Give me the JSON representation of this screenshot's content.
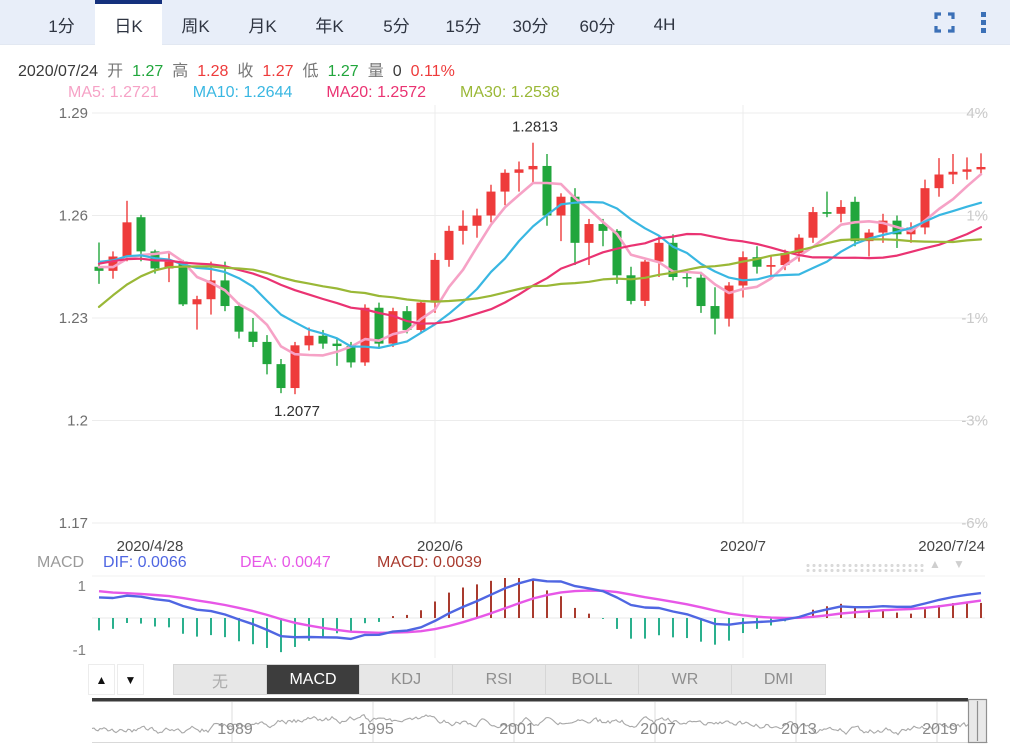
{
  "colors": {
    "accent_blue": "#3b70b7",
    "tab_active_border": "#15317d",
    "tabbar_bg": "#e8eef9",
    "up_red": "#ee3b3b",
    "down_green": "#21a63c",
    "dif_blue": "#4f66e2",
    "dea_magenta": "#e757e7",
    "hist_up": "#a93a2e",
    "hist_down": "#2ab08d",
    "grid": "#ececec",
    "text_dark": "#3a3a3a",
    "text_gray": "#777777",
    "text_light": "#c9c9c9"
  },
  "period_tabs": {
    "items": [
      "1分",
      "日K",
      "周K",
      "月K",
      "年K",
      "5分",
      "15分",
      "30分",
      "60分",
      "4H"
    ],
    "active_index": 1
  },
  "window_controls": {
    "fullscreen": "fullscreen-icon",
    "more": "kebab-menu-icon"
  },
  "quote_bar": {
    "segments": [
      {
        "text": "2020/07/24",
        "color": "#3a3a3a"
      },
      {
        "text": "开",
        "color": "#777777"
      },
      {
        "text": "1.27",
        "color": "#21a63c"
      },
      {
        "text": "高",
        "color": "#777777"
      },
      {
        "text": "1.28",
        "color": "#ee3b3b"
      },
      {
        "text": "收",
        "color": "#777777"
      },
      {
        "text": "1.27",
        "color": "#ee3b3b"
      },
      {
        "text": "低",
        "color": "#777777"
      },
      {
        "text": "1.27",
        "color": "#21a63c"
      },
      {
        "text": "量",
        "color": "#777777"
      },
      {
        "text": "0",
        "color": "#3a3a3a"
      },
      {
        "text": "0.11%",
        "color": "#ee3b3b"
      }
    ]
  },
  "ma_bar": {
    "items": [
      {
        "label": "MA5:",
        "value": "1.2721",
        "color": "#f6a2c6"
      },
      {
        "label": "MA10:",
        "value": "1.2644",
        "color": "#39b7e2"
      },
      {
        "label": "MA20:",
        "value": "1.2572",
        "color": "#ea3372"
      },
      {
        "label": "MA30:",
        "value": "1.2538",
        "color": "#9ab837"
      }
    ]
  },
  "macd_bar": {
    "title": "MACD",
    "items": [
      {
        "label": "DIF:",
        "value": "0.0066",
        "color": "#4f66e2"
      },
      {
        "label": "DEA:",
        "value": "0.0047",
        "color": "#e757e7"
      },
      {
        "label": "MACD:",
        "value": "0.0039",
        "color": "#a93a2e"
      }
    ],
    "up_arrow": "▲",
    "down_arrow": "▼"
  },
  "indicator_tabs": {
    "up_arrow": "▲",
    "down_arrow": "▼",
    "items": [
      "无",
      "MACD",
      "KDJ",
      "RSI",
      "BOLL",
      "WR",
      "DMI"
    ],
    "active_index": 1
  },
  "chart_data": [
    {
      "type": "candlestick",
      "title": "GBP daily K-line",
      "y_ticks": [
        {
          "value": 1.29,
          "left": "1.29",
          "right": "4%"
        },
        {
          "value": 1.26,
          "left": "1.26",
          "right": "1%"
        },
        {
          "value": 1.23,
          "left": "1.23",
          "right": "-1%"
        },
        {
          "value": 1.2,
          "left": "1.2",
          "right": "-3%"
        },
        {
          "value": 1.17,
          "left": "1.17",
          "right": "-6%"
        }
      ],
      "ylim": [
        1.165,
        1.2925
      ],
      "x_axis": [
        {
          "label": "2020/4/28",
          "index": 0,
          "x": 150,
          "anchor": "middle",
          "gridline": false
        },
        {
          "label": "2020/6",
          "index": 24,
          "x": 440,
          "anchor": "middle",
          "gridline": true
        },
        {
          "label": "2020/7",
          "index": 46,
          "x": 743,
          "anchor": "middle",
          "gridline": true
        },
        {
          "label": "2020/7/24",
          "index": 63,
          "x": 985,
          "anchor": "end",
          "gridline": false
        }
      ],
      "annotations": [
        {
          "text": "1.2813",
          "index": 31,
          "placement": "above"
        },
        {
          "text": "1.2077",
          "index": 14,
          "placement": "below"
        }
      ],
      "ma_periods": [
        5,
        10,
        20,
        30
      ],
      "prehistory_closes": [
        1.216,
        1.1466,
        1.1628,
        1.1773,
        1.1925,
        1.2175,
        1.2305,
        1.233,
        1.241,
        1.2464,
        1.2322,
        1.2335,
        1.2455,
        1.2473,
        1.2541,
        1.2478,
        1.2458,
        1.2414,
        1.2455,
        1.2443,
        1.248,
        1.244,
        1.2455,
        1.247,
        1.253,
        1.2505,
        1.248,
        1.246,
        1.244,
        1.2427
      ],
      "candles": [
        {
          "d": "2020/04/28",
          "o": 1.245,
          "h": 1.2521,
          "l": 1.24,
          "c": 1.2438
        },
        {
          "d": "2020/04/29",
          "o": 1.2438,
          "h": 1.2495,
          "l": 1.2415,
          "c": 1.248
        },
        {
          "d": "2020/04/30",
          "o": 1.248,
          "h": 1.2643,
          "l": 1.2466,
          "c": 1.258
        },
        {
          "d": "2020/05/01",
          "o": 1.2595,
          "h": 1.2602,
          "l": 1.2466,
          "c": 1.2495
        },
        {
          "d": "2020/05/04",
          "o": 1.2495,
          "h": 1.25,
          "l": 1.243,
          "c": 1.2445
        },
        {
          "d": "2020/05/05",
          "o": 1.2445,
          "h": 1.2495,
          "l": 1.2405,
          "c": 1.2465
        },
        {
          "d": "2020/05/06",
          "o": 1.2465,
          "h": 1.247,
          "l": 1.2335,
          "c": 1.234
        },
        {
          "d": "2020/05/07",
          "o": 1.234,
          "h": 1.2365,
          "l": 1.2266,
          "c": 1.2355
        },
        {
          "d": "2020/05/08",
          "o": 1.2355,
          "h": 1.2465,
          "l": 1.231,
          "c": 1.241
        },
        {
          "d": "2020/05/11",
          "o": 1.241,
          "h": 1.2465,
          "l": 1.232,
          "c": 1.2335
        },
        {
          "d": "2020/05/12",
          "o": 1.2335,
          "h": 1.2345,
          "l": 1.224,
          "c": 1.226
        },
        {
          "d": "2020/05/13",
          "o": 1.226,
          "h": 1.23,
          "l": 1.2215,
          "c": 1.223
        },
        {
          "d": "2020/05/14",
          "o": 1.223,
          "h": 1.225,
          "l": 1.2135,
          "c": 1.2165
        },
        {
          "d": "2020/05/15",
          "o": 1.2165,
          "h": 1.218,
          "l": 1.208,
          "c": 1.2095
        },
        {
          "d": "2020/05/18",
          "o": 1.2095,
          "h": 1.223,
          "l": 1.2077,
          "c": 1.222
        },
        {
          "d": "2020/05/19",
          "o": 1.222,
          "h": 1.2272,
          "l": 1.2205,
          "c": 1.2248
        },
        {
          "d": "2020/05/20",
          "o": 1.2248,
          "h": 1.2265,
          "l": 1.221,
          "c": 1.2225
        },
        {
          "d": "2020/05/21",
          "o": 1.2225,
          "h": 1.224,
          "l": 1.216,
          "c": 1.2218
        },
        {
          "d": "2020/05/22",
          "o": 1.2218,
          "h": 1.223,
          "l": 1.2155,
          "c": 1.217
        },
        {
          "d": "2020/05/25",
          "o": 1.217,
          "h": 1.234,
          "l": 1.216,
          "c": 1.233
        },
        {
          "d": "2020/05/26",
          "o": 1.233,
          "h": 1.2345,
          "l": 1.221,
          "c": 1.2225
        },
        {
          "d": "2020/05/27",
          "o": 1.2225,
          "h": 1.233,
          "l": 1.2215,
          "c": 1.232
        },
        {
          "d": "2020/05/28",
          "o": 1.232,
          "h": 1.2335,
          "l": 1.2255,
          "c": 1.2265
        },
        {
          "d": "2020/05/29",
          "o": 1.2265,
          "h": 1.235,
          "l": 1.2255,
          "c": 1.2345
        },
        {
          "d": "2020/06/01",
          "o": 1.2345,
          "h": 1.249,
          "l": 1.2315,
          "c": 1.247
        },
        {
          "d": "2020/06/02",
          "o": 1.247,
          "h": 1.257,
          "l": 1.245,
          "c": 1.2555
        },
        {
          "d": "2020/06/03",
          "o": 1.2555,
          "h": 1.2615,
          "l": 1.2515,
          "c": 1.257
        },
        {
          "d": "2020/06/04",
          "o": 1.257,
          "h": 1.262,
          "l": 1.2535,
          "c": 1.26
        },
        {
          "d": "2020/06/05",
          "o": 1.26,
          "h": 1.269,
          "l": 1.258,
          "c": 1.267
        },
        {
          "d": "2020/06/08",
          "o": 1.267,
          "h": 1.2735,
          "l": 1.263,
          "c": 1.2725
        },
        {
          "d": "2020/06/09",
          "o": 1.2725,
          "h": 1.2758,
          "l": 1.267,
          "c": 1.2735
        },
        {
          "d": "2020/06/10",
          "o": 1.2735,
          "h": 1.2813,
          "l": 1.2695,
          "c": 1.2745
        },
        {
          "d": "2020/06/11",
          "o": 1.2745,
          "h": 1.278,
          "l": 1.257,
          "c": 1.26
        },
        {
          "d": "2020/06/12",
          "o": 1.26,
          "h": 1.2665,
          "l": 1.2525,
          "c": 1.2655
        },
        {
          "d": "2020/06/15",
          "o": 1.2655,
          "h": 1.268,
          "l": 1.2455,
          "c": 1.252
        },
        {
          "d": "2020/06/16",
          "o": 1.252,
          "h": 1.259,
          "l": 1.2455,
          "c": 1.2575
        },
        {
          "d": "2020/06/17",
          "o": 1.2575,
          "h": 1.259,
          "l": 1.251,
          "c": 1.2555
        },
        {
          "d": "2020/06/18",
          "o": 1.2555,
          "h": 1.256,
          "l": 1.24,
          "c": 1.2425
        },
        {
          "d": "2020/06/19",
          "o": 1.2425,
          "h": 1.245,
          "l": 1.234,
          "c": 1.235
        },
        {
          "d": "2020/06/22",
          "o": 1.235,
          "h": 1.247,
          "l": 1.2335,
          "c": 1.2465
        },
        {
          "d": "2020/06/23",
          "o": 1.2465,
          "h": 1.2542,
          "l": 1.242,
          "c": 1.252
        },
        {
          "d": "2020/06/24",
          "o": 1.252,
          "h": 1.2545,
          "l": 1.241,
          "c": 1.242
        },
        {
          "d": "2020/06/25",
          "o": 1.242,
          "h": 1.244,
          "l": 1.239,
          "c": 1.2418
        },
        {
          "d": "2020/06/26",
          "o": 1.2418,
          "h": 1.2435,
          "l": 1.2315,
          "c": 1.2335
        },
        {
          "d": "2020/06/29",
          "o": 1.2335,
          "h": 1.239,
          "l": 1.2252,
          "c": 1.2298
        },
        {
          "d": "2020/06/30",
          "o": 1.2298,
          "h": 1.2405,
          "l": 1.2275,
          "c": 1.2395
        },
        {
          "d": "2020/07/01",
          "o": 1.2395,
          "h": 1.2495,
          "l": 1.236,
          "c": 1.2478
        },
        {
          "d": "2020/07/02",
          "o": 1.2478,
          "h": 1.251,
          "l": 1.243,
          "c": 1.245
        },
        {
          "d": "2020/07/03",
          "o": 1.245,
          "h": 1.248,
          "l": 1.2415,
          "c": 1.2455
        },
        {
          "d": "2020/07/06",
          "o": 1.2455,
          "h": 1.25,
          "l": 1.244,
          "c": 1.249
        },
        {
          "d": "2020/07/07",
          "o": 1.249,
          "h": 1.2545,
          "l": 1.2465,
          "c": 1.2535
        },
        {
          "d": "2020/07/08",
          "o": 1.2535,
          "h": 1.2625,
          "l": 1.252,
          "c": 1.261
        },
        {
          "d": "2020/07/09",
          "o": 1.261,
          "h": 1.267,
          "l": 1.2595,
          "c": 1.2605
        },
        {
          "d": "2020/07/10",
          "o": 1.2605,
          "h": 1.2645,
          "l": 1.258,
          "c": 1.2625
        },
        {
          "d": "2020/07/13",
          "o": 1.264,
          "h": 1.2655,
          "l": 1.251,
          "c": 1.2525
        },
        {
          "d": "2020/07/14",
          "o": 1.2525,
          "h": 1.256,
          "l": 1.248,
          "c": 1.255
        },
        {
          "d": "2020/07/15",
          "o": 1.255,
          "h": 1.2605,
          "l": 1.252,
          "c": 1.2585
        },
        {
          "d": "2020/07/16",
          "o": 1.2585,
          "h": 1.26,
          "l": 1.2505,
          "c": 1.2545
        },
        {
          "d": "2020/07/17",
          "o": 1.2545,
          "h": 1.258,
          "l": 1.252,
          "c": 1.2565
        },
        {
          "d": "2020/07/20",
          "o": 1.2565,
          "h": 1.2705,
          "l": 1.2545,
          "c": 1.268
        },
        {
          "d": "2020/07/21",
          "o": 1.268,
          "h": 1.2768,
          "l": 1.2655,
          "c": 1.272
        },
        {
          "d": "2020/07/22",
          "o": 1.272,
          "h": 1.278,
          "l": 1.2692,
          "c": 1.2728
        },
        {
          "d": "2020/07/23",
          "o": 1.2728,
          "h": 1.277,
          "l": 1.2705,
          "c": 1.2735
        },
        {
          "d": "2020/07/24",
          "o": 1.2735,
          "h": 1.2782,
          "l": 1.2718,
          "c": 1.2742
        }
      ]
    },
    {
      "type": "macd",
      "ema_periods": [
        12,
        26,
        9
      ],
      "y_ticks": [
        "1",
        "-1"
      ],
      "last_values": {
        "dif": 0.0066,
        "dea": 0.0047,
        "macd": 0.0039
      }
    },
    {
      "type": "line",
      "name": "history-navigator",
      "years": [
        {
          "label": "1989",
          "x": 235
        },
        {
          "label": "1995",
          "x": 376
        },
        {
          "label": "2001",
          "x": 517
        },
        {
          "label": "2007",
          "x": 658
        },
        {
          "label": "2013",
          "x": 799
        },
        {
          "label": "2019",
          "x": 940
        }
      ],
      "seed": 42
    }
  ]
}
